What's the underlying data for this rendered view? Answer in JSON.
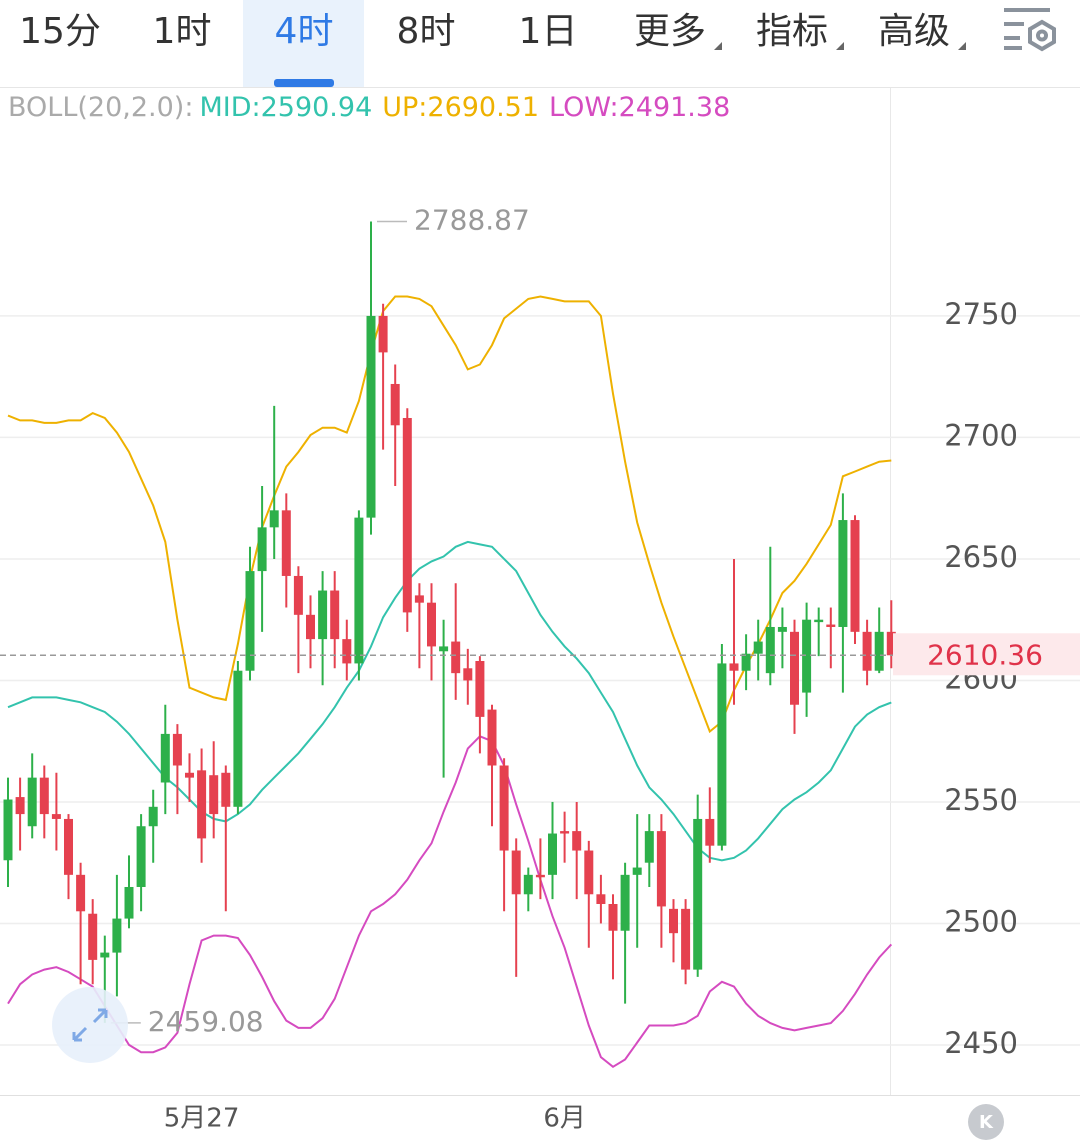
{
  "tabs": [
    {
      "label": "15分"
    },
    {
      "label": "1时"
    },
    {
      "label": "4时",
      "active": true
    },
    {
      "label": "8时"
    },
    {
      "label": "1日"
    },
    {
      "label": "更多",
      "menu": true
    },
    {
      "label": "指标",
      "menu": true
    },
    {
      "label": "高级",
      "menu": true
    }
  ],
  "chart_data": {
    "type": "candlestick",
    "indicator": "BOLL(20,2.0):",
    "categories": [
      null,
      null,
      null,
      null,
      null,
      null,
      null,
      null,
      null,
      null,
      null,
      null,
      null,
      null,
      null,
      null,
      "5月27",
      null,
      null,
      null,
      null,
      null,
      null,
      null,
      null,
      null,
      null,
      null,
      null,
      null,
      null,
      null,
      null,
      null,
      null,
      null,
      null,
      null,
      null,
      null,
      null,
      null,
      null,
      null,
      null,
      null,
      "6月",
      null,
      null,
      null,
      null,
      null,
      null,
      null,
      null,
      null,
      null,
      null,
      null,
      null,
      null,
      null,
      null,
      null,
      null,
      null,
      null,
      null,
      null,
      null,
      null,
      null,
      null,
      null
    ],
    "open": [
      2526,
      2552,
      2540,
      2560,
      2545,
      2543,
      2520,
      2504,
      2486,
      2488,
      2502,
      2515,
      2540,
      2558,
      2578,
      2562,
      2563,
      2561,
      2562,
      2548,
      2604,
      2645,
      2663,
      2670,
      2643,
      2627,
      2617,
      2637,
      2617,
      2607,
      2667,
      2750,
      2722,
      2708,
      2635,
      2632,
      2612,
      2616,
      2605,
      2608,
      2588,
      2565,
      2530,
      2512,
      2520,
      2520,
      2538,
      2538,
      2530,
      2512,
      2508,
      2497,
      2520,
      2525,
      2538,
      2506,
      2506,
      2481,
      2543,
      2532,
      2607,
      2604,
      2611,
      2603,
      2620,
      2620,
      2595,
      2624,
      2623,
      2622,
      2666,
      2620,
      2604,
      2620
    ],
    "high": [
      2560,
      2560,
      2570,
      2565,
      2562,
      2545,
      2525,
      2510,
      2495,
      2520,
      2528,
      2545,
      2555,
      2590,
      2582,
      2570,
      2572,
      2575,
      2565,
      2608,
      2655,
      2680,
      2713,
      2677,
      2647,
      2635,
      2645,
      2645,
      2625,
      2670,
      2788.87,
      2755,
      2730,
      2712,
      2640,
      2640,
      2625,
      2640,
      2613,
      2610,
      2590,
      2568,
      2535,
      2523,
      2535,
      2550,
      2546,
      2550,
      2534,
      2520,
      2512,
      2525,
      2545,
      2545,
      2545,
      2510,
      2510,
      2553,
      2556,
      2615,
      2650,
      2619,
      2625,
      2655,
      2630,
      2625,
      2632,
      2630,
      2630,
      2677,
      2668,
      2625,
      2630,
      2633
    ],
    "low": [
      2515,
      2530,
      2535,
      2535,
      2530,
      2510,
      2475,
      2475,
      2459.08,
      2470,
      2498,
      2505,
      2525,
      2545,
      2545,
      2550,
      2525,
      2535,
      2505,
      2545,
      2600,
      2620,
      2650,
      2630,
      2603,
      2605,
      2598,
      2605,
      2600,
      2600,
      2660,
      2695,
      2680,
      2620,
      2605,
      2600,
      2560,
      2592,
      2590,
      2570,
      2540,
      2505,
      2478,
      2505,
      2510,
      2510,
      2525,
      2510,
      2490,
      2500,
      2477,
      2467,
      2490,
      2515,
      2490,
      2484,
      2475,
      2478,
      2525,
      2530,
      2590,
      2596,
      2600,
      2598,
      2605,
      2578,
      2585,
      2610,
      2605,
      2595,
      2615,
      2598,
      2603,
      2605
    ],
    "close": [
      2551,
      2545,
      2560,
      2545,
      2543,
      2520,
      2505,
      2485,
      2488,
      2502,
      2515,
      2540,
      2548,
      2578,
      2565,
      2560,
      2535,
      2545,
      2548,
      2604,
      2645,
      2663,
      2670,
      2643,
      2627,
      2617,
      2637,
      2617,
      2607,
      2667,
      2750,
      2735,
      2705,
      2628,
      2632,
      2614,
      2614,
      2603,
      2600,
      2585,
      2565,
      2530,
      2512,
      2520,
      2519,
      2537,
      2537,
      2530,
      2512,
      2508,
      2497,
      2520,
      2523,
      2538,
      2507,
      2496,
      2481,
      2543,
      2532,
      2607,
      2604,
      2611,
      2616,
      2622,
      2622,
      2590,
      2625,
      2625,
      2622,
      2666,
      2620,
      2604,
      2620,
      2610.36
    ],
    "up_color": "#2db04a",
    "down_color": "#e5414f",
    "series": [
      {
        "name": "MID:",
        "color": "#33c3ad",
        "values": [
          2589,
          2591,
          2593,
          2593,
          2593,
          2592,
          2591,
          2589,
          2587,
          2583,
          2578,
          2572,
          2566,
          2560,
          2556,
          2551,
          2546,
          2543,
          2542,
          2545,
          2549,
          2555,
          2560,
          2565,
          2570,
          2576,
          2582,
          2589,
          2597,
          2604,
          2614,
          2626,
          2634,
          2641,
          2646,
          2649,
          2651,
          2655,
          2657,
          2656,
          2655,
          2650,
          2645,
          2636,
          2627,
          2620,
          2614,
          2609,
          2603,
          2595,
          2587,
          2576,
          2565,
          2556,
          2551,
          2545,
          2538,
          2531,
          2527,
          2526,
          2527,
          2530,
          2535,
          2541,
          2547,
          2551,
          2554,
          2558,
          2563,
          2572,
          2581,
          2586,
          2589,
          2590.94
        ]
      },
      {
        "name": "UP:",
        "color": "#eeb100",
        "values": [
          2709,
          2707,
          2707,
          2706,
          2706,
          2707,
          2707,
          2710,
          2708,
          2702,
          2694,
          2683,
          2672,
          2657,
          2625,
          2597,
          2595,
          2593,
          2592,
          2615,
          2642,
          2663,
          2676,
          2688,
          2694,
          2701,
          2704,
          2704,
          2702,
          2715,
          2735,
          2752,
          2758,
          2758,
          2757,
          2754,
          2746,
          2738,
          2728,
          2730,
          2738,
          2749,
          2753,
          2757,
          2758,
          2757,
          2756,
          2756,
          2756,
          2750,
          2718,
          2690,
          2665,
          2648,
          2632,
          2618,
          2605,
          2592,
          2579,
          2583,
          2596,
          2606,
          2615,
          2625,
          2636,
          2641,
          2648,
          2656,
          2664,
          2684,
          2686,
          2688,
          2690,
          2690.51
        ]
      },
      {
        "name": "LOW:",
        "color": "#d54bc0",
        "values": [
          2467,
          2475,
          2479,
          2481,
          2482,
          2480,
          2477,
          2474,
          2466,
          2458,
          2450,
          2447,
          2447,
          2449,
          2455,
          2475,
          2493,
          2495,
          2495,
          2494,
          2487,
          2478,
          2468,
          2460,
          2457,
          2457,
          2461,
          2469,
          2482,
          2495,
          2505,
          2508,
          2512,
          2518,
          2526,
          2533,
          2546,
          2558,
          2572,
          2577,
          2575,
          2565,
          2549,
          2534,
          2518,
          2503,
          2490,
          2474,
          2458,
          2445,
          2441,
          2444,
          2451,
          2458,
          2458,
          2458,
          2459,
          2462,
          2472,
          2476,
          2474,
          2467,
          2462,
          2459,
          2457,
          2456,
          2457,
          2458,
          2459,
          2464,
          2471,
          2479,
          2486,
          2491.38
        ]
      }
    ],
    "ylim": [
      2429.4,
      2843.8
    ],
    "yticks": [
      2450,
      2500,
      2550,
      2600,
      2650,
      2700,
      2750
    ],
    "grid": true
  }
}
